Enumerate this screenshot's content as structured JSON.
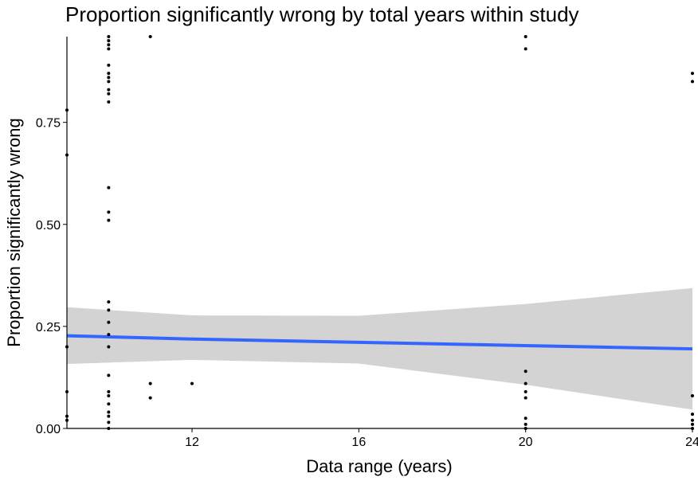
{
  "chart_data": {
    "type": "scatter",
    "title": "Proportion significantly wrong by total years within study",
    "xlabel": "Data range (years)",
    "ylabel": "Proportion significantly wrong",
    "xlim": [
      9,
      24
    ],
    "ylim": [
      0,
      0.96
    ],
    "x_ticks": [
      12,
      16,
      20,
      24
    ],
    "y_ticks": [
      0.0,
      0.25,
      0.5,
      0.75
    ],
    "x_tick_labels": [
      "12",
      "16",
      "20",
      "24"
    ],
    "y_tick_labels": [
      "0.00",
      "0.25",
      "0.50",
      "0.75"
    ],
    "grid": false,
    "legend": "none",
    "colors": {
      "points": "#000000",
      "smooth_line": "#3366FF",
      "confidence_band": "#D3D3D3",
      "axes": "#000000"
    },
    "points": [
      [
        9,
        0.78
      ],
      [
        9,
        0.67
      ],
      [
        9,
        0.2
      ],
      [
        9,
        0.09
      ],
      [
        9,
        0.03
      ],
      [
        9,
        0.02
      ],
      [
        10,
        0.96
      ],
      [
        10,
        0.95
      ],
      [
        10,
        0.94
      ],
      [
        10,
        0.93
      ],
      [
        10,
        0.89
      ],
      [
        10,
        0.87
      ],
      [
        10,
        0.86
      ],
      [
        10,
        0.85
      ],
      [
        10,
        0.83
      ],
      [
        10,
        0.82
      ],
      [
        10,
        0.8
      ],
      [
        10,
        0.59
      ],
      [
        10,
        0.53
      ],
      [
        10,
        0.51
      ],
      [
        10,
        0.31
      ],
      [
        10,
        0.29
      ],
      [
        10,
        0.26
      ],
      [
        10,
        0.23
      ],
      [
        10,
        0.2
      ],
      [
        10,
        0.13
      ],
      [
        10,
        0.09
      ],
      [
        10,
        0.08
      ],
      [
        10,
        0.06
      ],
      [
        10,
        0.04
      ],
      [
        10,
        0.03
      ],
      [
        10,
        0.015
      ],
      [
        10,
        0.0
      ],
      [
        11,
        0.96
      ],
      [
        11,
        0.11
      ],
      [
        11,
        0.075
      ],
      [
        12,
        0.11
      ],
      [
        20,
        0.96
      ],
      [
        20,
        0.93
      ],
      [
        20,
        0.14
      ],
      [
        20,
        0.11
      ],
      [
        20,
        0.09
      ],
      [
        20,
        0.075
      ],
      [
        20,
        0.025
      ],
      [
        20,
        0.01
      ],
      [
        20,
        0.0
      ],
      [
        24,
        0.87
      ],
      [
        24,
        0.85
      ],
      [
        24,
        0.08
      ],
      [
        24,
        0.035
      ],
      [
        24,
        0.02
      ],
      [
        24,
        0.01
      ],
      [
        24,
        0.0
      ]
    ],
    "smooth": {
      "x": [
        9,
        12,
        16,
        20,
        24
      ],
      "y": [
        0.227,
        0.219,
        0.211,
        0.203,
        0.195
      ],
      "ymin": [
        0.158,
        0.168,
        0.159,
        0.107,
        0.046
      ],
      "ymax": [
        0.297,
        0.277,
        0.276,
        0.305,
        0.344
      ]
    }
  }
}
